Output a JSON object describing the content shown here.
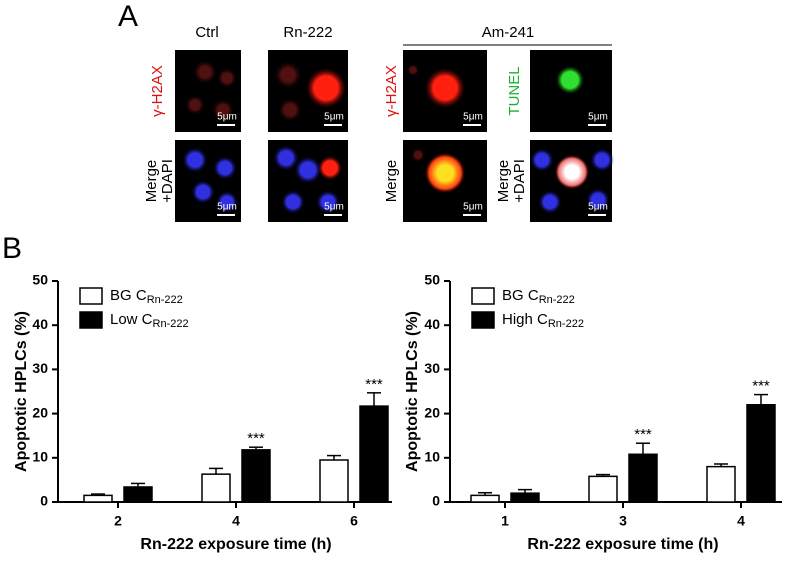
{
  "panel_a": {
    "label": "A",
    "columns": [
      "Ctrl",
      "Rn-222",
      "Am-241"
    ],
    "row_labels": {
      "gamma": "γ-H2AX",
      "tunel": "TUNEL",
      "merge": "Merge",
      "merge_dapi_1": "Merge",
      "merge_dapi_2": "+DAPI"
    },
    "scale_bar": "5μm"
  },
  "panel_b": {
    "label": "B"
  },
  "chart_data": [
    {
      "type": "bar",
      "categories": [
        "2",
        "4",
        "6"
      ],
      "x_label": "Rn-222 exposure time (h)",
      "y_label": "Apoptotic HPLCs (%)",
      "ylim": [
        0,
        50
      ],
      "yticks": [
        0,
        10,
        20,
        30,
        40,
        50
      ],
      "legend": "top-left",
      "series": [
        {
          "name": "BG C",
          "subscript": "Rn-222",
          "color": "#ffffff",
          "values": [
            1.5,
            6.3,
            9.5
          ],
          "errors": [
            0.3,
            1.3,
            1.0
          ],
          "significance": [
            null,
            null,
            null
          ]
        },
        {
          "name": "Low C",
          "subscript": "Rn-222",
          "color": "#000000",
          "values": [
            3.4,
            11.8,
            21.7
          ],
          "errors": [
            0.8,
            0.6,
            3.0
          ],
          "significance": [
            null,
            "***",
            "***"
          ]
        }
      ]
    },
    {
      "type": "bar",
      "categories": [
        "1",
        "3",
        "4"
      ],
      "x_label": "Rn-222 exposure time (h)",
      "y_label": "Apoptotic HPLCs (%)",
      "ylim": [
        0,
        50
      ],
      "yticks": [
        0,
        10,
        20,
        30,
        40,
        50
      ],
      "legend": "top-left",
      "series": [
        {
          "name": "BG C",
          "subscript": "Rn-222",
          "color": "#ffffff",
          "values": [
            1.5,
            5.8,
            8.0
          ],
          "errors": [
            0.6,
            0.4,
            0.6
          ],
          "significance": [
            null,
            null,
            null
          ]
        },
        {
          "name": "High C",
          "subscript": "Rn-222",
          "color": "#000000",
          "values": [
            2.0,
            10.8,
            22.0
          ],
          "errors": [
            0.8,
            2.5,
            2.3
          ],
          "significance": [
            null,
            "***",
            "***"
          ]
        }
      ]
    }
  ]
}
